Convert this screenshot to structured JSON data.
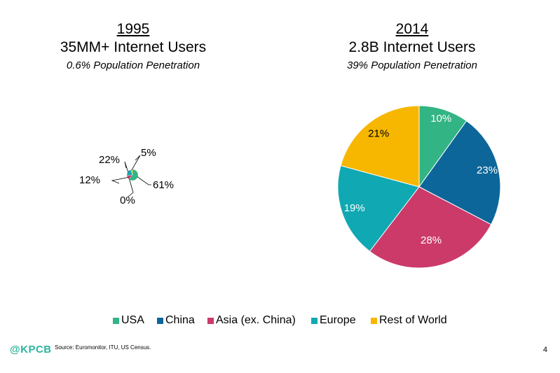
{
  "colors": {
    "usa": "#33b484",
    "china": "#0d6699",
    "asia": "#cc3a6a",
    "europe": "#10a8b2",
    "row": "#f7b700"
  },
  "chart_data": [
    {
      "type": "pie",
      "year": "1995",
      "title": "35MM+ Internet Users",
      "subtitle": "0.6% Population Penetration",
      "categories": [
        "USA",
        "China",
        "Asia (ex. China)",
        "Europe",
        "Rest of World"
      ],
      "values": [
        61,
        0,
        12,
        22,
        5
      ],
      "labels": [
        "61%",
        "0%",
        "12%",
        "22%",
        "5%"
      ]
    },
    {
      "type": "pie",
      "year": "2014",
      "title": "2.8B Internet Users",
      "subtitle": "39% Population Penetration",
      "categories": [
        "USA",
        "China",
        "Asia (ex. China)",
        "Europe",
        "Rest of World"
      ],
      "values": [
        10,
        23,
        28,
        19,
        21
      ],
      "labels": [
        "10%",
        "23%",
        "28%",
        "19%",
        "21%"
      ]
    }
  ],
  "legend": [
    "USA",
    "China",
    "Asia (ex. China)",
    "Europe",
    "Rest of World"
  ],
  "footer": {
    "logo": "@KPCB",
    "source": "Source: Euromonitor, ITU, US Census.",
    "page": "4"
  }
}
